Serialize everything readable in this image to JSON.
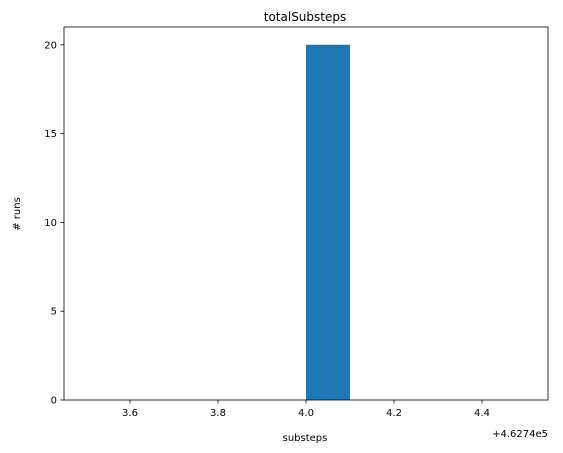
{
  "chart_data": {
    "type": "bar",
    "title": "totalSubsteps",
    "xlabel": "substeps",
    "ylabel": "# runs",
    "x_offset_label": "+4.6274e5",
    "xlim": [
      3.45,
      4.55
    ],
    "ylim": [
      0,
      21
    ],
    "x_ticks": [
      3.6,
      3.8,
      4.0,
      4.2,
      4.4
    ],
    "x_tick_labels": [
      "3.6",
      "3.8",
      "4.0",
      "4.2",
      "4.4"
    ],
    "y_ticks": [
      0,
      5,
      10,
      15,
      20
    ],
    "y_tick_labels": [
      "0",
      "5",
      "10",
      "15",
      "20"
    ],
    "bins": [
      {
        "x0": 3.5,
        "x1": 3.6,
        "value": 0
      },
      {
        "x0": 3.6,
        "x1": 3.7,
        "value": 0
      },
      {
        "x0": 3.7,
        "x1": 3.8,
        "value": 0
      },
      {
        "x0": 3.8,
        "x1": 3.9,
        "value": 0
      },
      {
        "x0": 3.9,
        "x1": 4.0,
        "value": 0
      },
      {
        "x0": 4.0,
        "x1": 4.1,
        "value": 20
      },
      {
        "x0": 4.1,
        "x1": 4.2,
        "value": 0
      },
      {
        "x0": 4.2,
        "x1": 4.3,
        "value": 0
      },
      {
        "x0": 4.3,
        "x1": 4.4,
        "value": 0
      },
      {
        "x0": 4.4,
        "x1": 4.5,
        "value": 0
      }
    ],
    "bar_color": "#1f77b4",
    "grid": false,
    "legend": "none"
  }
}
